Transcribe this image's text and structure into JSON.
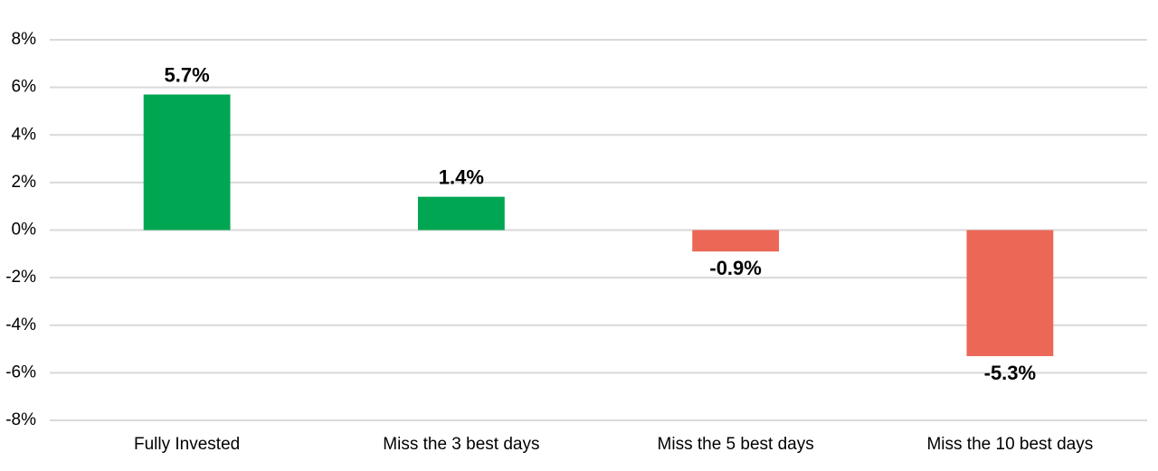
{
  "chart_data": {
    "type": "bar",
    "categories": [
      "Fully Invested",
      "Miss the 3 best days",
      "Miss the 5 best days",
      "Miss the 10 best days"
    ],
    "values": [
      5.7,
      1.4,
      -0.9,
      -5.3
    ],
    "value_labels": [
      "5.7%",
      "1.4%",
      "-0.9%",
      "-5.3%"
    ],
    "colors": [
      "#00a651",
      "#00a651",
      "#eb6857",
      "#eb6857"
    ],
    "ylim": [
      -8,
      8
    ],
    "yticks": [
      {
        "value": -8,
        "label": "-8%"
      },
      {
        "value": -6,
        "label": "-6%"
      },
      {
        "value": -4,
        "label": "-4%"
      },
      {
        "value": -2,
        "label": "-2%"
      },
      {
        "value": 0,
        "label": "0%"
      },
      {
        "value": 2,
        "label": "2%"
      },
      {
        "value": 4,
        "label": "4%"
      },
      {
        "value": 6,
        "label": "6%"
      },
      {
        "value": 8,
        "label": "8%"
      }
    ],
    "grid": true
  }
}
